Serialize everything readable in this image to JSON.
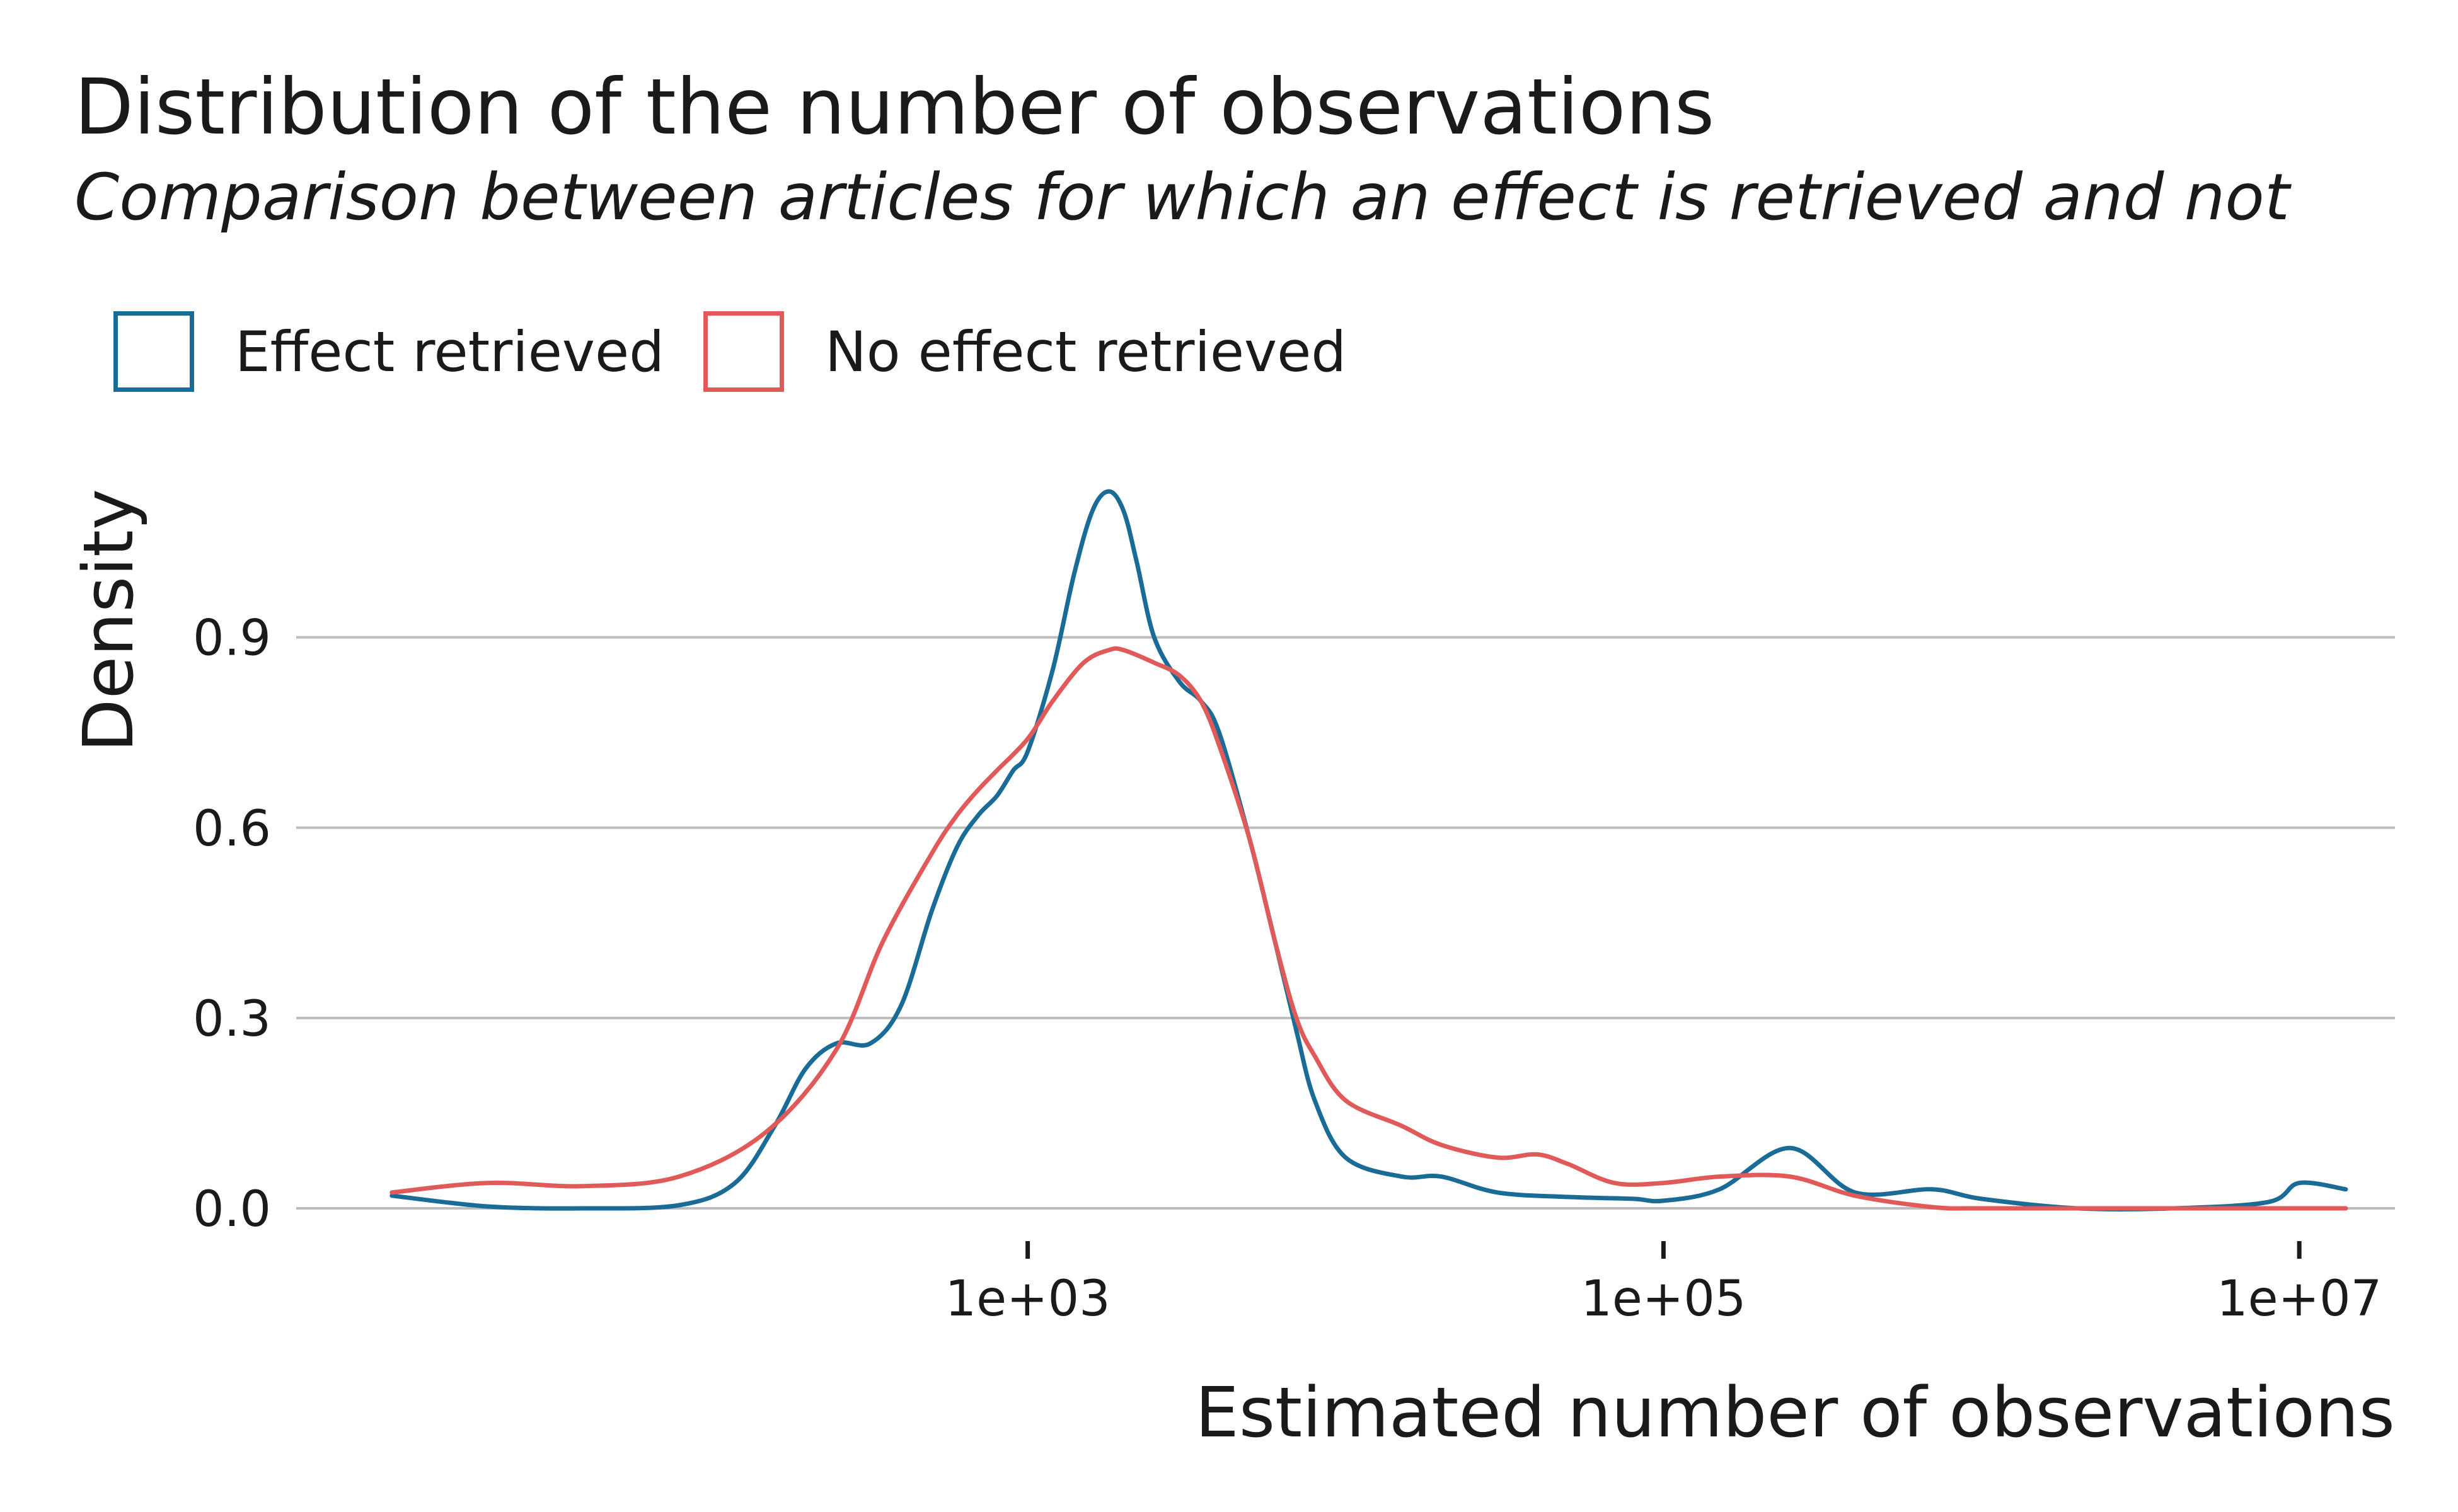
{
  "chart_data": {
    "type": "line",
    "title": "Distribution of the number of observations",
    "subtitle": "Comparison between articles for which an effect is retrieved and not",
    "xlabel": "Estimated number of observations",
    "ylabel": "Density",
    "x_scale": "log10",
    "xlim": [
      5,
      20000000
    ],
    "ylim": [
      0,
      1.13
    ],
    "x_ticks": [
      1000,
      100000,
      10000000
    ],
    "x_tick_labels": [
      "1e+03",
      "1e+05",
      "1e+07"
    ],
    "y_ticks": [
      0,
      0.3,
      0.6,
      0.9
    ],
    "y_tick_labels": [
      "0.0",
      "0.3",
      "0.6",
      "0.9"
    ],
    "grid": "horizontal",
    "legend_position": "top-left",
    "series": [
      {
        "name": "Effect retrieved",
        "color": "#1a6b96",
        "x": [
          10,
          20,
          40,
          80,
          120,
          160,
          200,
          250,
          320,
          400,
          500,
          600,
          700,
          800,
          900,
          1000,
          1200,
          1400,
          1600,
          1800,
          2000,
          2200,
          2500,
          3000,
          3500,
          4000,
          5000,
          6000,
          7000,
          8000,
          10000,
          15000,
          20000,
          30000,
          50000,
          80000,
          100000,
          150000,
          250000,
          400000,
          700000,
          1000000,
          2000000,
          4000000,
          8000000,
          10000000,
          14000000
        ],
        "y": [
          0.02,
          0.003,
          0.0,
          0.005,
          0.04,
          0.13,
          0.22,
          0.26,
          0.26,
          0.32,
          0.47,
          0.57,
          0.62,
          0.65,
          0.69,
          0.72,
          0.85,
          1.0,
          1.1,
          1.13,
          1.1,
          1.02,
          0.9,
          0.83,
          0.8,
          0.75,
          0.58,
          0.42,
          0.28,
          0.17,
          0.08,
          0.05,
          0.05,
          0.025,
          0.018,
          0.015,
          0.012,
          0.03,
          0.095,
          0.025,
          0.03,
          0.015,
          0.0,
          0.0,
          0.01,
          0.04,
          0.03
        ]
      },
      {
        "name": "No effect retrieved",
        "color": "#e05a5a",
        "x": [
          10,
          20,
          40,
          80,
          150,
          250,
          350,
          500,
          600,
          700,
          800,
          1000,
          1200,
          1500,
          1800,
          2000,
          2500,
          3000,
          3500,
          4000,
          5000,
          6000,
          7000,
          8000,
          10000,
          15000,
          20000,
          30000,
          40000,
          50000,
          70000,
          100000,
          150000,
          250000,
          400000,
          700000,
          1000000,
          2000000,
          5000000,
          14000000
        ],
        "y": [
          0.025,
          0.04,
          0.035,
          0.05,
          0.12,
          0.25,
          0.42,
          0.56,
          0.62,
          0.66,
          0.69,
          0.74,
          0.8,
          0.86,
          0.88,
          0.88,
          0.86,
          0.84,
          0.8,
          0.73,
          0.58,
          0.42,
          0.3,
          0.24,
          0.17,
          0.13,
          0.1,
          0.08,
          0.085,
          0.07,
          0.04,
          0.04,
          0.05,
          0.05,
          0.02,
          0.002,
          0.0,
          0.0,
          0.0,
          0.0
        ]
      }
    ]
  }
}
